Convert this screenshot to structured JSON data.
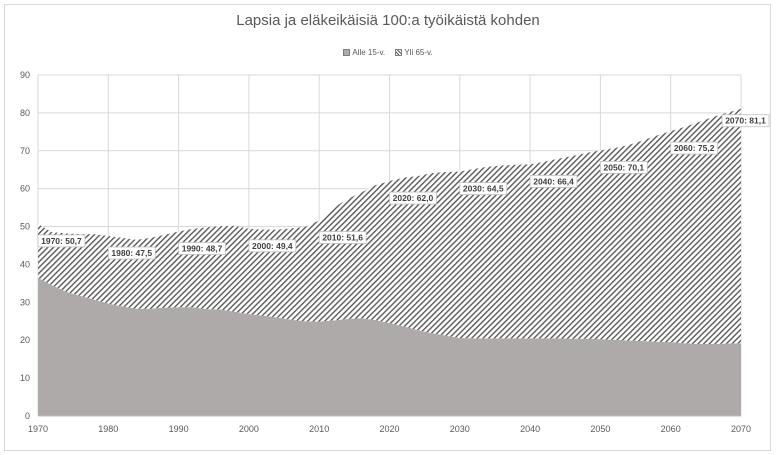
{
  "chart_data": {
    "type": "area",
    "title": "Lapsia ja eläkeikäisiä 100:a työikäistä kohden",
    "xlabel": "",
    "ylabel": "",
    "xlim": [
      1970,
      2070
    ],
    "ylim": [
      0,
      90
    ],
    "y_ticks": [
      0,
      10,
      20,
      30,
      40,
      50,
      60,
      70,
      80,
      90
    ],
    "x_ticks": [
      1970,
      1980,
      1990,
      2000,
      2010,
      2020,
      2030,
      2040,
      2050,
      2060,
      2070
    ],
    "stacked": true,
    "grid": true,
    "legend_position": "top",
    "x": [
      1970,
      1972,
      1974,
      1976,
      1978,
      1980,
      1982,
      1984,
      1986,
      1988,
      1990,
      1992,
      1994,
      1996,
      1998,
      2000,
      2002,
      2004,
      2006,
      2008,
      2010,
      2012,
      2014,
      2016,
      2018,
      2020,
      2022,
      2024,
      2026,
      2028,
      2030,
      2032,
      2034,
      2036,
      2038,
      2040,
      2042,
      2044,
      2046,
      2048,
      2050,
      2052,
      2054,
      2056,
      2058,
      2060,
      2062,
      2064,
      2066,
      2068,
      2070
    ],
    "series": [
      {
        "name": "Alle 15-v.",
        "color": "#aeaaaa",
        "pattern": "solid",
        "values": [
          36.5,
          34.5,
          32.8,
          31.7,
          30.7,
          29.7,
          28.9,
          28.3,
          28.3,
          28.6,
          28.7,
          28.7,
          28.2,
          28.1,
          27.5,
          26.9,
          26.5,
          26.0,
          25.4,
          25.0,
          24.9,
          25.2,
          25.6,
          25.8,
          25.3,
          24.5,
          23.7,
          22.7,
          21.9,
          21.2,
          20.6,
          20.5,
          20.5,
          20.5,
          20.5,
          20.5,
          20.5,
          20.5,
          20.4,
          20.4,
          20.3,
          20.1,
          19.9,
          19.8,
          19.6,
          19.5,
          19.2,
          19.0,
          19.0,
          19.1,
          19.2
        ]
      },
      {
        "name": "Yli 65-v.",
        "color": "#595959",
        "pattern": "diagonal-hatch",
        "values": [
          14.2,
          14.0,
          15.4,
          16.3,
          17.3,
          17.8,
          18.1,
          18.2,
          18.7,
          19.2,
          20.0,
          20.7,
          21.6,
          22.0,
          22.7,
          22.5,
          22.7,
          23.2,
          24.1,
          24.9,
          26.7,
          29.7,
          31.6,
          33.2,
          35.6,
          37.5,
          39.2,
          40.6,
          42.2,
          43.2,
          43.9,
          44.7,
          45.3,
          45.6,
          45.8,
          45.9,
          46.6,
          47.4,
          48.2,
          49.0,
          49.8,
          50.6,
          51.6,
          52.9,
          54.4,
          55.7,
          57.1,
          58.6,
          59.9,
          60.9,
          61.9
        ]
      }
    ],
    "annotations": [
      {
        "x": 1970,
        "label": "1970: 50,7"
      },
      {
        "x": 1980,
        "label": "1980: 47,5"
      },
      {
        "x": 1990,
        "label": "1990: 48,7"
      },
      {
        "x": 2000,
        "label": "2000: 49,4"
      },
      {
        "x": 2010,
        "label": "2010: 51,6"
      },
      {
        "x": 2020,
        "label": "2020: 62,0"
      },
      {
        "x": 2030,
        "label": "2030: 64,5"
      },
      {
        "x": 2040,
        "label": "2040: 66,4"
      },
      {
        "x": 2050,
        "label": "2050: 70,1"
      },
      {
        "x": 2060,
        "label": "2060: 75,2"
      },
      {
        "x": 2070,
        "label": "2070: 81,1"
      }
    ]
  }
}
